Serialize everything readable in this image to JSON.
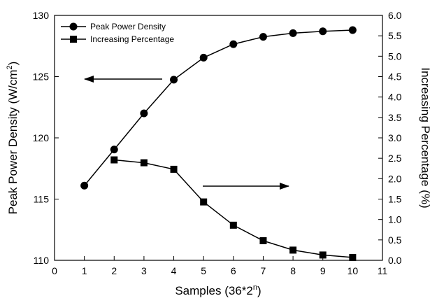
{
  "chart_data": {
    "type": "line",
    "x": [
      1,
      2,
      3,
      4,
      5,
      6,
      7,
      8,
      9,
      10
    ],
    "xlim": [
      0,
      11
    ],
    "xticks": [
      0,
      1,
      2,
      3,
      4,
      5,
      6,
      7,
      8,
      9,
      10,
      11
    ],
    "xlabel_base": "Samples (36*2",
    "xlabel_sup": "n",
    "xlabel_end": ")",
    "left_axis": {
      "label_base": "Peak Power Density (W/cm",
      "label_sup": "2",
      "label_end": ")",
      "ylim": [
        110,
        130
      ],
      "ticks": [
        110,
        115,
        120,
        125,
        130
      ]
    },
    "right_axis": {
      "label": "Increasing Percentage (%)",
      "ylim": [
        0,
        6
      ],
      "ticks": [
        "0.0",
        "0.5",
        "1.0",
        "1.5",
        "2.0",
        "2.5",
        "3.0",
        "3.5",
        "4.0",
        "4.5",
        "5.0",
        "5.5",
        "6.0"
      ]
    },
    "series": [
      {
        "name": "Peak Power Density",
        "axis": "left",
        "marker": "circle",
        "x": [
          1,
          2,
          3,
          4,
          5,
          6,
          7,
          8,
          9,
          10
        ],
        "values": [
          116.1,
          119.05,
          122.0,
          124.75,
          126.55,
          127.65,
          128.25,
          128.55,
          128.7,
          128.8
        ]
      },
      {
        "name": "Increasing Percentage",
        "axis": "right",
        "marker": "square",
        "x": [
          2,
          3,
          4,
          5,
          6,
          7,
          8,
          9,
          10
        ],
        "values": [
          2.46,
          2.39,
          2.23,
          1.43,
          0.86,
          0.48,
          0.25,
          0.13,
          0.07
        ]
      }
    ],
    "annotations": [
      {
        "type": "arrow",
        "direction": "left",
        "meaning": "left-axis series"
      },
      {
        "type": "arrow",
        "direction": "right",
        "meaning": "right-axis series"
      }
    ],
    "legend_position": "top-left",
    "grid": false,
    "colors": {
      "line": "#000000",
      "background": "#ffffff"
    }
  }
}
